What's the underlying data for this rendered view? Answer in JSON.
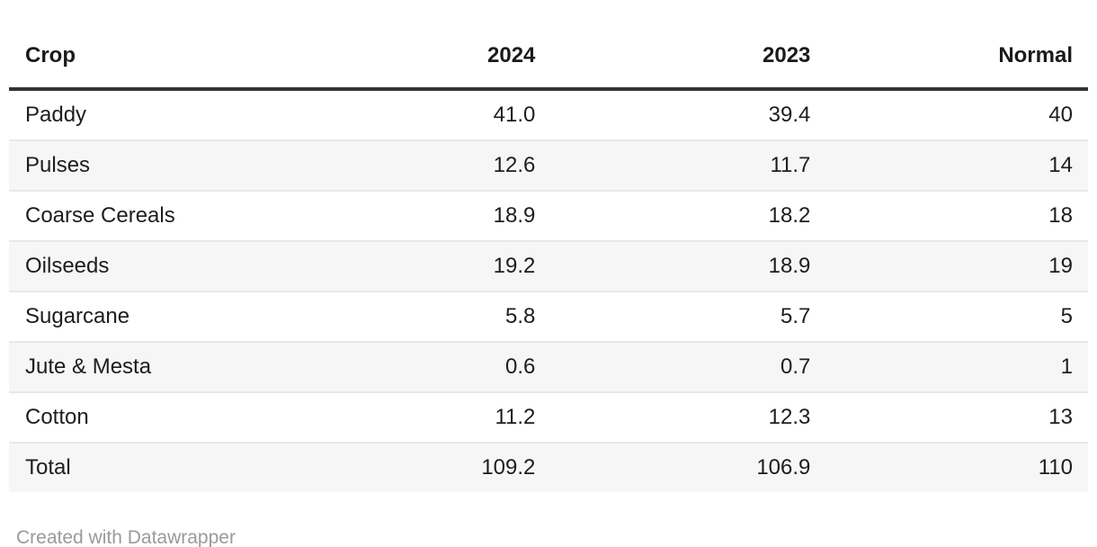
{
  "header": {
    "cells": [
      "Crop",
      "2024",
      "2023",
      "Normal"
    ]
  },
  "rows": [
    {
      "cells": [
        "Paddy",
        "41.0",
        "39.4",
        "40"
      ]
    },
    {
      "cells": [
        "Pulses",
        "12.6",
        "11.7",
        "14"
      ]
    },
    {
      "cells": [
        "Coarse Cereals",
        "18.9",
        "18.2",
        "18"
      ]
    },
    {
      "cells": [
        "Oilseeds",
        "19.2",
        "18.9",
        "19"
      ]
    },
    {
      "cells": [
        "Sugarcane",
        "5.8",
        "5.7",
        "5"
      ]
    },
    {
      "cells": [
        "Jute & Mesta",
        "0.6",
        "0.7",
        "1"
      ]
    },
    {
      "cells": [
        "Cotton",
        "11.2",
        "12.3",
        "13"
      ]
    },
    {
      "cells": [
        "Total",
        "109.2",
        "106.9",
        "110"
      ]
    }
  ],
  "footer": {
    "attribution": "Created with Datawrapper"
  },
  "colors": {
    "header_rule": "#333333",
    "row_divider": "#e8e8e8",
    "zebra_background": "#f6f6f6",
    "text": "#1d1d1d",
    "footer_text": "#9a9a9a"
  },
  "chart_data": {
    "type": "table",
    "columns": [
      "Crop",
      "2024",
      "2023",
      "Normal"
    ],
    "rows": [
      [
        "Paddy",
        41.0,
        39.4,
        40
      ],
      [
        "Pulses",
        12.6,
        11.7,
        14
      ],
      [
        "Coarse Cereals",
        18.9,
        18.2,
        18
      ],
      [
        "Oilseeds",
        19.2,
        18.9,
        19
      ],
      [
        "Sugarcane",
        5.8,
        5.7,
        5
      ],
      [
        "Jute & Mesta",
        0.6,
        0.7,
        1
      ],
      [
        "Cotton",
        11.2,
        12.3,
        13
      ],
      [
        "Total",
        109.2,
        106.9,
        110
      ]
    ],
    "title": "",
    "notes": "Zebra-striped data table; numeric columns right-aligned; Total row included as final row",
    "attribution": "Created with Datawrapper"
  }
}
